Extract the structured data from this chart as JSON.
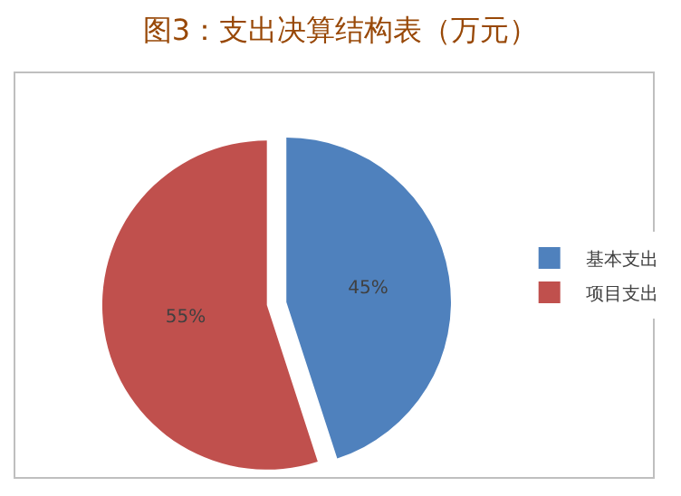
{
  "chart_data": {
    "type": "pie",
    "title": "图3：支出决算结构表（万元）",
    "categories": [
      "基本支出",
      "项目支出"
    ],
    "values": [
      45,
      55
    ],
    "value_labels": [
      "45%",
      "55%"
    ],
    "colors": [
      "#4f81bd",
      "#c0504d"
    ],
    "legend": "right"
  }
}
